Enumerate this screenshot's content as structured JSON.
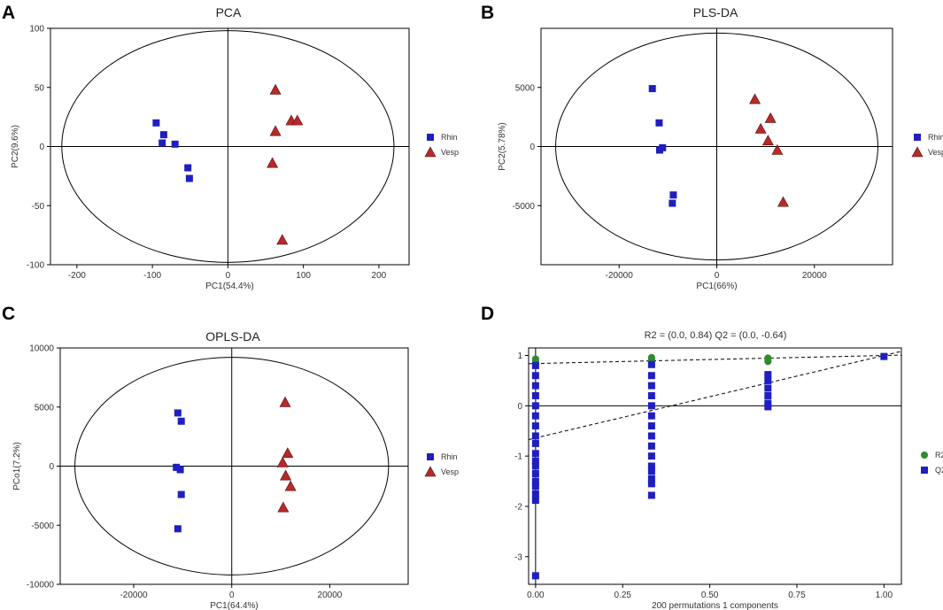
{
  "figure": {
    "panels": [
      "A",
      "B",
      "C",
      "D"
    ]
  },
  "chart_data": [
    {
      "id": "A",
      "type": "scatter",
      "title": "PCA",
      "xlabel": "PC1(54.4%)",
      "ylabel": "PC2(9.6%)",
      "xlim": [
        -235,
        240
      ],
      "ylim": [
        -100,
        100
      ],
      "xticks": [
        -200,
        -100,
        0,
        100,
        200
      ],
      "xtick_labels": [
        "-200",
        "-100",
        "0",
        "100",
        "200"
      ],
      "yticks": [
        -100,
        -50,
        0,
        50,
        100
      ],
      "ytick_labels": [
        "-100",
        "-50",
        "0",
        "50",
        "100"
      ],
      "ellipse": {
        "cx": 0,
        "cy": 0,
        "rx": 220,
        "ry": 98
      },
      "legend": [
        "Rhin",
        "Vesp"
      ],
      "series": [
        {
          "name": "Rhin",
          "marker": "square",
          "color": "#1f1fbf",
          "points": [
            [
              -95,
              20
            ],
            [
              -85,
              10
            ],
            [
              -87,
              3
            ],
            [
              -70,
              2
            ],
            [
              -53,
              -18
            ],
            [
              -51,
              -27
            ]
          ]
        },
        {
          "name": "Vesp",
          "marker": "triangle",
          "color": "#b52a2a",
          "points": [
            [
              63,
              48
            ],
            [
              84,
              22
            ],
            [
              92,
              22
            ],
            [
              63,
              13
            ],
            [
              59,
              -14
            ],
            [
              72,
              -79
            ]
          ]
        }
      ]
    },
    {
      "id": "B",
      "type": "scatter",
      "title": "PLS-DA",
      "xlabel": "PC1(66%)",
      "ylabel": "PC2(5.78%)",
      "xlim": [
        -36000,
        36000
      ],
      "ylim": [
        -10000,
        10000
      ],
      "xticks": [
        -20000,
        0,
        20000
      ],
      "xtick_labels": [
        "-20000",
        "0",
        "20000"
      ],
      "yticks": [
        -5000,
        0,
        5000
      ],
      "ytick_labels": [
        "-5000",
        "0",
        "5000"
      ],
      "ellipse": {
        "cx": 0,
        "cy": 0,
        "rx": 33000,
        "ry": 9600
      },
      "legend": [
        "Rhin",
        "Vesp"
      ],
      "series": [
        {
          "name": "Rhin",
          "marker": "square",
          "color": "#1f1fbf",
          "points": [
            [
              -13200,
              4900
            ],
            [
              -11800,
              2000
            ],
            [
              -11100,
              -100
            ],
            [
              -11700,
              -300
            ],
            [
              -8900,
              -4100
            ],
            [
              -9100,
              -4800
            ]
          ]
        },
        {
          "name": "Vesp",
          "marker": "triangle",
          "color": "#b52a2a",
          "points": [
            [
              7800,
              4000
            ],
            [
              11000,
              2400
            ],
            [
              9000,
              1500
            ],
            [
              10500,
              500
            ],
            [
              12400,
              -300
            ],
            [
              13600,
              -4700
            ]
          ]
        }
      ]
    },
    {
      "id": "C",
      "type": "scatter",
      "title": "OPLS-DA",
      "xlabel": "PC1(64.4%)",
      "ylabel": "PCo1(7.2%)",
      "xlim": [
        -35000,
        36000
      ],
      "ylim": [
        -10000,
        10000
      ],
      "xticks": [
        -20000,
        0,
        20000
      ],
      "xtick_labels": [
        "-20000",
        "0",
        "20000"
      ],
      "yticks": [
        -10000,
        -5000,
        0,
        5000,
        10000
      ],
      "ytick_labels": [
        "-10000",
        "-5000",
        "0",
        "5000",
        "10000"
      ],
      "ellipse": {
        "cx": 0,
        "cy": 0,
        "rx": 32000,
        "ry": 9200
      },
      "legend": [
        "Rhin",
        "Vesp"
      ],
      "series": [
        {
          "name": "Rhin",
          "marker": "square",
          "color": "#1f1fbf",
          "points": [
            [
              -11000,
              4500
            ],
            [
              -10300,
              3800
            ],
            [
              -11300,
              -100
            ],
            [
              -10500,
              -300
            ],
            [
              -10300,
              -2400
            ],
            [
              -11000,
              -5300
            ]
          ]
        },
        {
          "name": "Vesp",
          "marker": "triangle",
          "color": "#b52a2a",
          "points": [
            [
              10900,
              5400
            ],
            [
              11400,
              1100
            ],
            [
              10400,
              300
            ],
            [
              11000,
              -800
            ],
            [
              12000,
              -1700
            ],
            [
              10500,
              -3500
            ]
          ]
        }
      ]
    },
    {
      "id": "D",
      "type": "scatter",
      "title": "R2 =  (0.0, 0.84)   Q2 = (0.0, -0.64)",
      "xlabel": "200 permutations 1 components",
      "ylabel": "",
      "xlim": [
        -0.02,
        1.05
      ],
      "ylim": [
        -3.55,
        1.15
      ],
      "xticks": [
        0,
        0.25,
        0.5,
        0.75,
        1
      ],
      "xtick_labels": [
        "0.00",
        "0.25",
        "0.50",
        "0.75",
        "1.00"
      ],
      "yticks": [
        -3,
        -2,
        -1,
        0,
        1
      ],
      "ytick_labels": [
        "-3",
        "-2",
        "-1",
        "0",
        "1"
      ],
      "regression_lines": [
        {
          "name": "R2",
          "intercept": 0.84,
          "slope": 0.16
        },
        {
          "name": "Q2",
          "intercept": -0.64,
          "slope": 1.64
        }
      ],
      "legend": [
        "R2",
        "Q2"
      ],
      "series": [
        {
          "name": "R2",
          "marker": "circle",
          "color": "#2e8b2e",
          "points": [
            [
              0,
              0.84
            ],
            [
              0,
              0.87
            ],
            [
              0,
              0.9
            ],
            [
              0,
              0.93
            ],
            [
              0.333,
              0.87
            ],
            [
              0.333,
              0.9
            ],
            [
              0.333,
              0.93
            ],
            [
              0.333,
              0.96
            ],
            [
              0.667,
              0.88
            ],
            [
              0.667,
              0.92
            ],
            [
              0.667,
              0.95
            ]
          ]
        },
        {
          "name": "Q2",
          "marker": "square",
          "color": "#1f1fbf",
          "points": [
            [
              0,
              0.8
            ],
            [
              0,
              0.6
            ],
            [
              0,
              0.4
            ],
            [
              0,
              0.2
            ],
            [
              0,
              0.0
            ],
            [
              0,
              -0.2
            ],
            [
              0,
              -0.4
            ],
            [
              0,
              -0.6
            ],
            [
              0,
              -0.75
            ],
            [
              0,
              -0.95
            ],
            [
              0,
              -1.1
            ],
            [
              0,
              -1.2
            ],
            [
              0,
              -1.35
            ],
            [
              0,
              -1.5
            ],
            [
              0,
              -1.6
            ],
            [
              0,
              -1.75
            ],
            [
              0,
              -1.88
            ],
            [
              0,
              -3.38
            ],
            [
              0.333,
              0.82
            ],
            [
              0.333,
              0.6
            ],
            [
              0.333,
              0.4
            ],
            [
              0.333,
              0.2
            ],
            [
              0.333,
              0.0
            ],
            [
              0.333,
              -0.2
            ],
            [
              0.333,
              -0.4
            ],
            [
              0.333,
              -0.6
            ],
            [
              0.333,
              -0.8
            ],
            [
              0.333,
              -1.0
            ],
            [
              0.333,
              -1.2
            ],
            [
              0.333,
              -1.3
            ],
            [
              0.333,
              -1.45
            ],
            [
              0.333,
              -1.55
            ],
            [
              0.333,
              -1.78
            ],
            [
              0.667,
              0.62
            ],
            [
              0.667,
              0.5
            ],
            [
              0.667,
              0.35
            ],
            [
              0.667,
              0.2
            ],
            [
              0.667,
              0.05
            ],
            [
              0.667,
              -0.02
            ],
            [
              1,
              0.98
            ]
          ]
        }
      ]
    }
  ]
}
